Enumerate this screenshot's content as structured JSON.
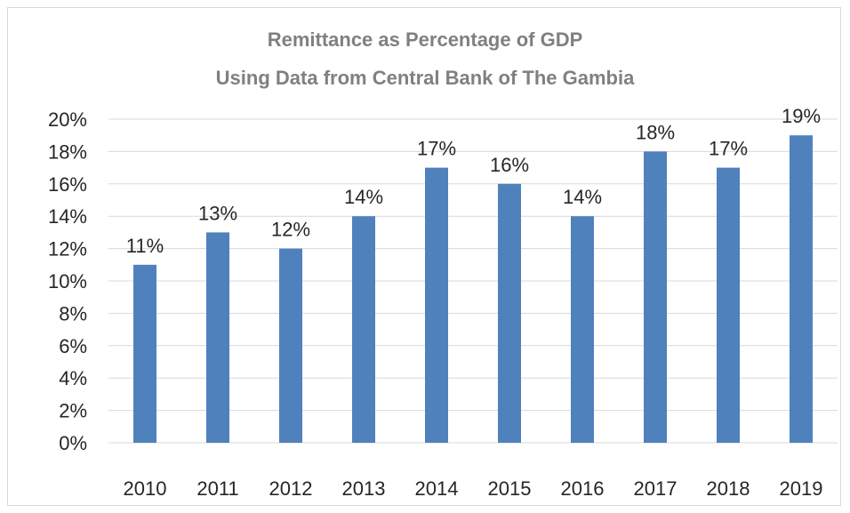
{
  "chart_data": {
    "type": "bar",
    "title": [
      "Remittance as Percentage of GDP",
      "Using Data from Central Bank of The Gambia"
    ],
    "categories": [
      "2010",
      "2011",
      "2012",
      "2013",
      "2014",
      "2015",
      "2016",
      "2017",
      "2018",
      "2019"
    ],
    "values": [
      11,
      13,
      12,
      14,
      17,
      16,
      14,
      18,
      17,
      19
    ],
    "data_labels": [
      "11%",
      "13%",
      "12%",
      "14%",
      "17%",
      "16%",
      "14%",
      "18%",
      "17%",
      "19%"
    ],
    "ylim": [
      0,
      20
    ],
    "ytick_values": [
      0,
      2,
      4,
      6,
      8,
      10,
      12,
      14,
      16,
      18,
      20
    ],
    "ytick_labels": [
      "0%",
      "2%",
      "4%",
      "6%",
      "8%",
      "10%",
      "12%",
      "14%",
      "16%",
      "18%",
      "20%"
    ],
    "grid": true,
    "legend": "none",
    "bar_color": "#4f81bd",
    "title_color": "#808080",
    "text_color": "#262626",
    "grid_color": "#d9d9d9"
  }
}
